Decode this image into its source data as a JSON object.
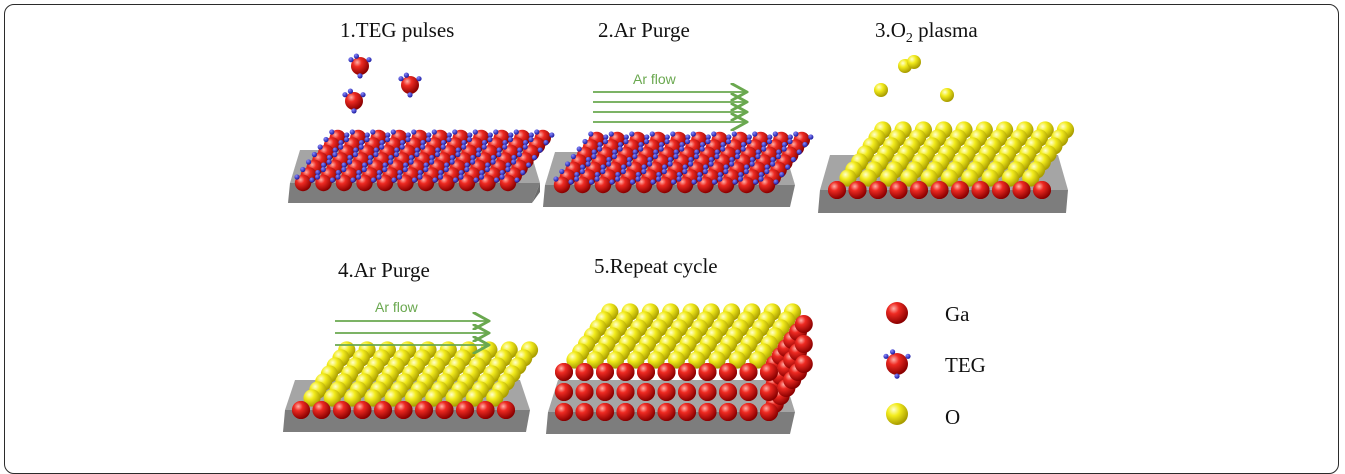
{
  "steps": [
    {
      "label": "1.TEG pulses"
    },
    {
      "label": "2.Ar Purge",
      "flow_text": "Ar flow"
    },
    {
      "label": "3.O",
      "subscript": "2",
      "suffix": " plasma"
    },
    {
      "label": "4.Ar Purge",
      "flow_text": "Ar flow"
    },
    {
      "label": "5.Repeat cycle"
    }
  ],
  "legend": {
    "items": [
      {
        "label": "Ga",
        "icon": "ga-sphere-icon"
      },
      {
        "label": "TEG",
        "icon": "teg-molecule-icon"
      },
      {
        "label": "O",
        "icon": "o-sphere-icon"
      }
    ]
  },
  "colors": {
    "ga": "#e02020",
    "teg_ligand": "#2c2ccf",
    "o": "#f2ea1a",
    "substrate": "#8c8c8c",
    "arrow": "#6aa84f"
  }
}
